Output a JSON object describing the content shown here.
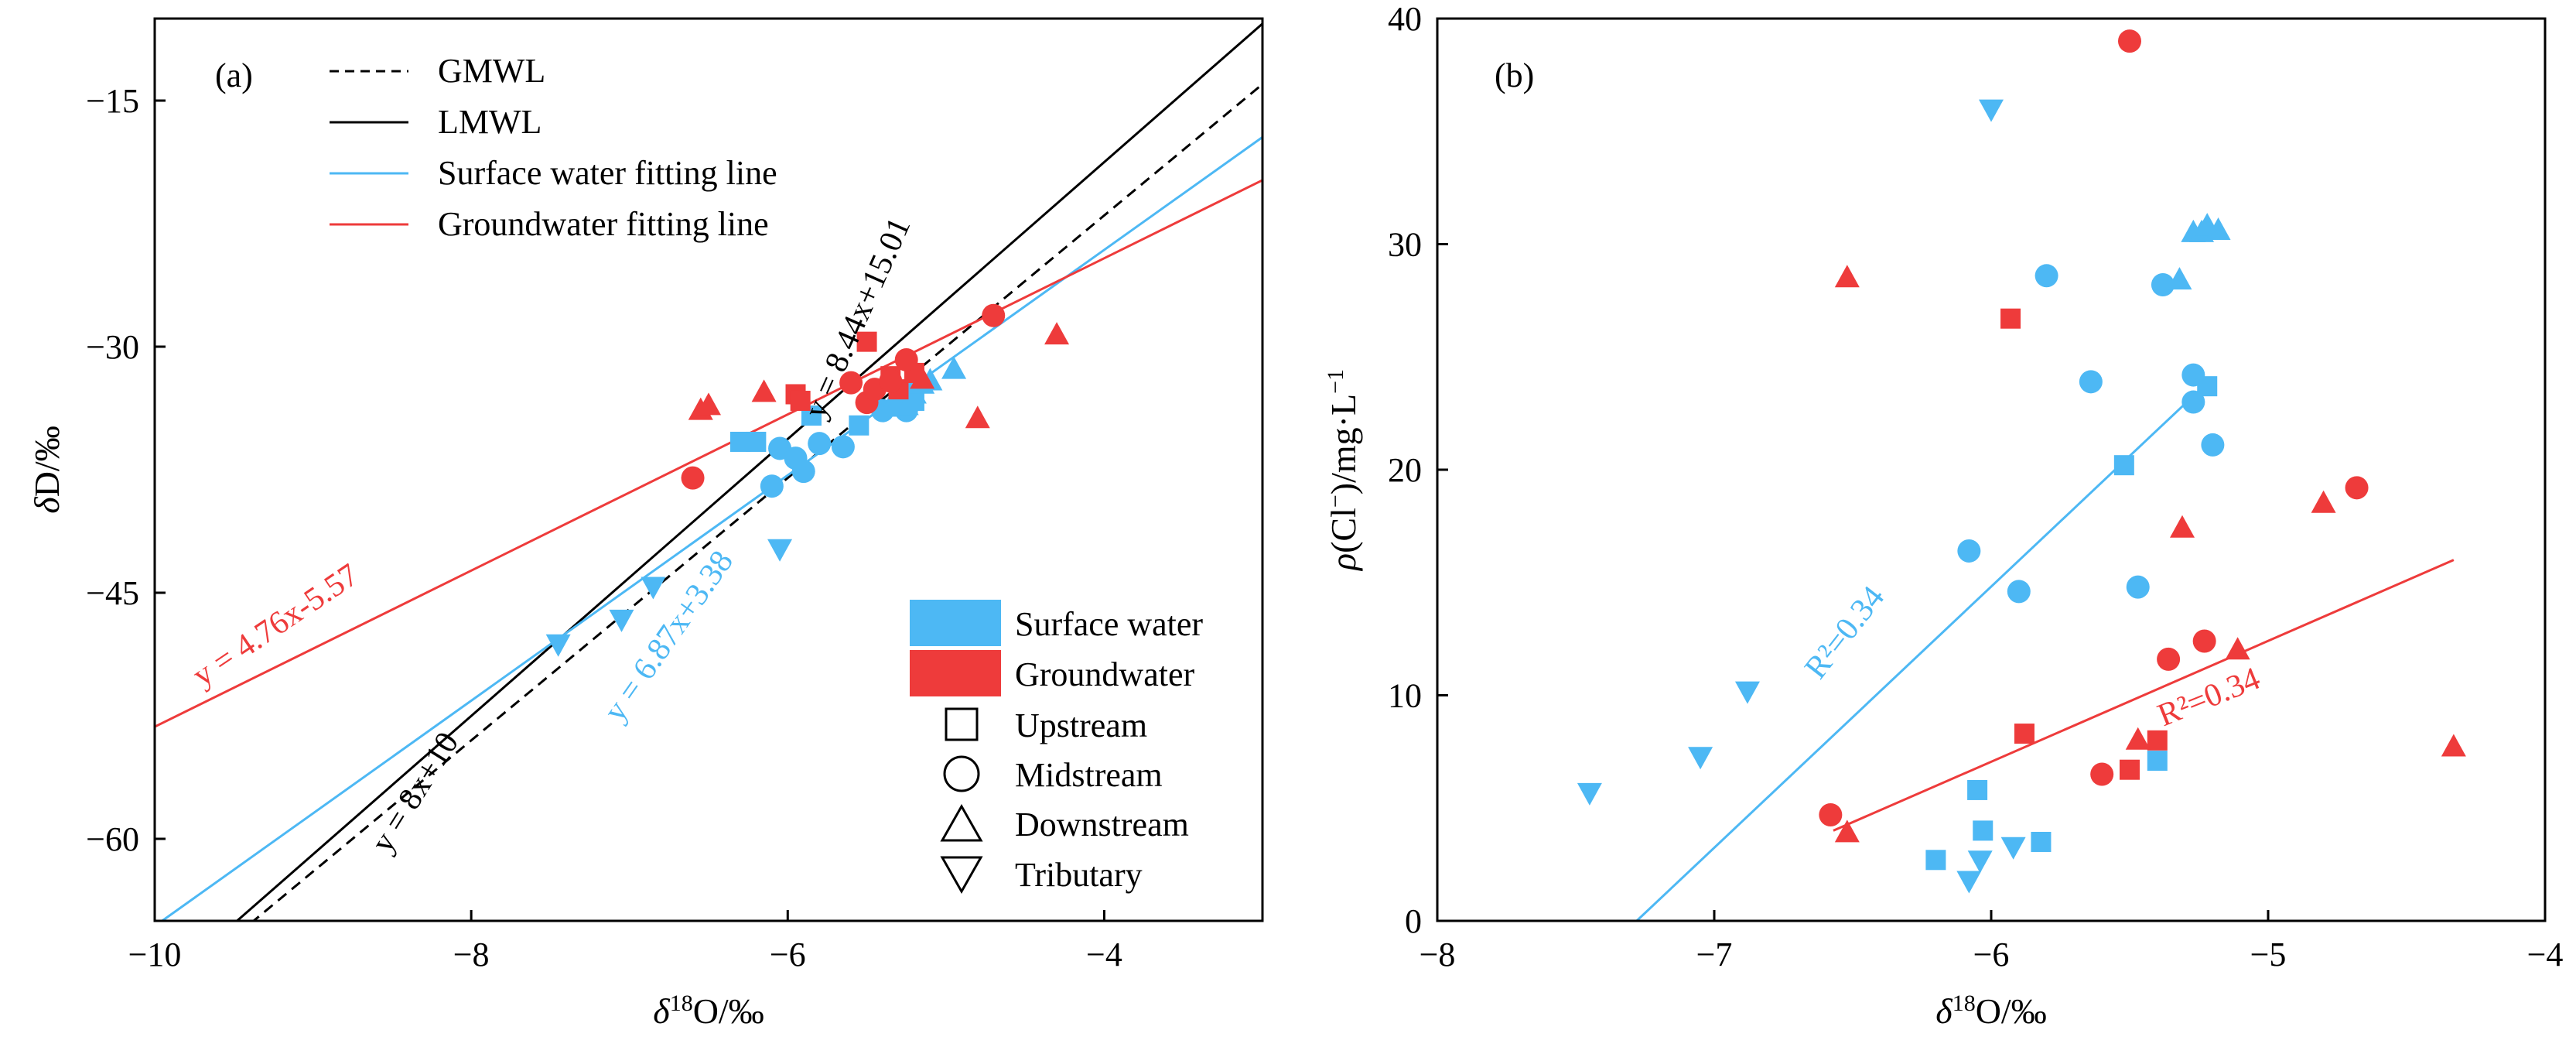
{
  "colors": {
    "surface": "#4db8f4",
    "ground": "#ee3b3b",
    "black": "#000000"
  },
  "chart_data": [
    {
      "type": "scatter",
      "panel_label": "(a)",
      "xlabel": "δ18O/‰",
      "ylabel": "δD/‰",
      "xlim": [
        -10,
        -3
      ],
      "ylim": [
        -65,
        -10
      ],
      "xticks": [
        -10,
        -8,
        -6,
        -4
      ],
      "xtick_labels": [
        "−10",
        "−8",
        "−6",
        "−4"
      ],
      "yticks": [
        -60,
        -45,
        -30,
        -15
      ],
      "ytick_labels": [
        "−60",
        "−45",
        "−30",
        "−15"
      ],
      "legend_lines": [
        {
          "label": "GMWL",
          "color": "#000000",
          "dash": true
        },
        {
          "label": "LMWL",
          "color": "#000000",
          "dash": false
        },
        {
          "label": "Surface water fitting line",
          "color": "#4db8f4",
          "dash": false
        },
        {
          "label": "Groundwater fitting line",
          "color": "#ee3b3b",
          "dash": false
        }
      ],
      "legend_groups": [
        {
          "label": "Surface water",
          "color": "#4db8f4"
        },
        {
          "label": "Groundwater",
          "color": "#ee3b3b"
        }
      ],
      "legend_shapes": [
        {
          "label": "Upstream",
          "shape": "square"
        },
        {
          "label": "Midstream",
          "shape": "circle"
        },
        {
          "label": "Downstream",
          "shape": "triangle"
        },
        {
          "label": "Tributary",
          "shape": "triangle-down"
        }
      ],
      "lines": [
        {
          "name": "GMWL",
          "slope": 8,
          "intercept": 10,
          "color": "#000000",
          "dash": true,
          "x_range": [
            -10,
            -3
          ]
        },
        {
          "name": "LMWL",
          "slope": 8.44,
          "intercept": 15.01,
          "color": "#000000",
          "dash": false,
          "x_range": [
            -10,
            -3
          ]
        },
        {
          "name": "Surface water fitting line",
          "slope": 6.87,
          "intercept": 3.38,
          "color": "#4db8f4",
          "dash": false,
          "x_range": [
            -10,
            -3
          ]
        },
        {
          "name": "Groundwater fitting line",
          "slope": 4.76,
          "intercept": -5.57,
          "color": "#ee3b3b",
          "dash": false,
          "x_range": [
            -10,
            -3
          ]
        }
      ],
      "annotations": [
        {
          "text": "y = 8.44x+15.01",
          "x": -5.5,
          "y": -28.5,
          "angle": -66,
          "color": "#000000"
        },
        {
          "text": "y = 8x+10",
          "x": -8.3,
          "y": -57.5,
          "angle": -58,
          "color": "#000000"
        },
        {
          "text": "y = 6.87x+3.38",
          "x": -6.7,
          "y": -48,
          "angle": -55,
          "color": "#4db8f4"
        },
        {
          "text": "y = 4.76x-5.57",
          "x": -9.2,
          "y": -47.5,
          "angle": -34,
          "color": "#ee3b3b"
        }
      ],
      "series": [
        {
          "name": "Surface water – Upstream",
          "group": "surface",
          "shape": "square",
          "points": [
            [
              -6.3,
              -35.8
            ],
            [
              -6.2,
              -35.8
            ],
            [
              -5.85,
              -34.2
            ],
            [
              -5.55,
              -34.8
            ],
            [
              -5.25,
              -32.8
            ],
            [
              -5.2,
              -33.3
            ]
          ]
        },
        {
          "name": "Surface water – Midstream",
          "group": "surface",
          "shape": "circle",
          "points": [
            [
              -6.1,
              -38.5
            ],
            [
              -6.05,
              -36.2
            ],
            [
              -5.95,
              -36.8
            ],
            [
              -5.9,
              -37.6
            ],
            [
              -5.8,
              -35.9
            ],
            [
              -5.65,
              -36.1
            ],
            [
              -5.4,
              -33.9
            ],
            [
              -5.3,
              -33.4
            ],
            [
              -5.25,
              -33.9
            ],
            [
              -5.2,
              -32.5
            ]
          ]
        },
        {
          "name": "Surface water – Downstream",
          "group": "surface",
          "shape": "triangle",
          "points": [
            [
              -5.35,
              -33.7
            ],
            [
              -5.3,
              -33.3
            ],
            [
              -5.25,
              -33.6
            ],
            [
              -5.2,
              -32.9
            ],
            [
              -5.15,
              -32.3
            ],
            [
              -5.1,
              -32.1
            ],
            [
              -4.95,
              -31.4
            ]
          ]
        },
        {
          "name": "Surface water – Tributary",
          "group": "surface",
          "shape": "triangle-down",
          "points": [
            [
              -7.45,
              -48.1
            ],
            [
              -7.05,
              -46.6
            ],
            [
              -6.85,
              -44.6
            ],
            [
              -6.05,
              -42.3
            ]
          ]
        },
        {
          "name": "Groundwater – Upstream",
          "group": "ground",
          "shape": "square",
          "points": [
            [
              -5.95,
              -32.9
            ],
            [
              -5.92,
              -33.3
            ],
            [
              -5.5,
              -29.7
            ],
            [
              -5.35,
              -31.8
            ],
            [
              -5.3,
              -32.6
            ],
            [
              -5.2,
              -31.6
            ]
          ]
        },
        {
          "name": "Groundwater – Midstream",
          "group": "ground",
          "shape": "circle",
          "points": [
            [
              -6.6,
              -38.0
            ],
            [
              -5.6,
              -32.2
            ],
            [
              -5.5,
              -33.4
            ],
            [
              -5.45,
              -32.6
            ],
            [
              -5.35,
              -32.1
            ],
            [
              -5.25,
              -30.8
            ],
            [
              -4.7,
              -28.1
            ]
          ]
        },
        {
          "name": "Groundwater – Downstream",
          "group": "ground",
          "shape": "triangle",
          "points": [
            [
              -6.55,
              -33.9
            ],
            [
              -6.5,
              -33.6
            ],
            [
              -6.15,
              -32.8
            ],
            [
              -5.15,
              -32.0
            ],
            [
              -4.8,
              -34.4
            ],
            [
              -4.3,
              -29.3
            ]
          ]
        }
      ]
    },
    {
      "type": "scatter",
      "panel_label": "(b)",
      "xlabel": "δ18O/‰",
      "ylabel": "ρ(Cl−)/mg·L−1",
      "xlim": [
        -8,
        -4
      ],
      "ylim": [
        0,
        40
      ],
      "xticks": [
        -8,
        -7,
        -6,
        -5,
        -4
      ],
      "xtick_labels": [
        "−8",
        "−7",
        "−6",
        "−5",
        "−4"
      ],
      "yticks": [
        0,
        10,
        20,
        30,
        40
      ],
      "ytick_labels": [
        "0",
        "10",
        "20",
        "30",
        "40"
      ],
      "lines": [
        {
          "name": "Surface water fit",
          "color": "#4db8f4",
          "p1": [
            -7.28,
            0
          ],
          "p2": [
            -5.25,
            23.5
          ]
        },
        {
          "name": "Groundwater fit",
          "color": "#ee3b3b",
          "p1": [
            -6.57,
            4.0
          ],
          "p2": [
            -4.33,
            16.0
          ]
        }
      ],
      "annotations": [
        {
          "text": "R²=0.34",
          "x": -6.5,
          "y": 12.5,
          "angle": -52,
          "color": "#4db8f4"
        },
        {
          "text": "R²=0.34",
          "x": -5.2,
          "y": 9.5,
          "angle": -22,
          "color": "#ee3b3b"
        }
      ],
      "series": [
        {
          "name": "Surface water – Upstream",
          "group": "surface",
          "shape": "square",
          "points": [
            [
              -6.2,
              2.7
            ],
            [
              -6.05,
              5.8
            ],
            [
              -6.03,
              4.0
            ],
            [
              -5.82,
              3.5
            ],
            [
              -5.52,
              20.2
            ],
            [
              -5.4,
              7.1
            ],
            [
              -5.22,
              23.7
            ]
          ]
        },
        {
          "name": "Surface water – Midstream",
          "group": "surface",
          "shape": "circle",
          "points": [
            [
              -6.08,
              16.4
            ],
            [
              -5.9,
              14.6
            ],
            [
              -5.8,
              28.6
            ],
            [
              -5.64,
              23.9
            ],
            [
              -5.47,
              14.8
            ],
            [
              -5.38,
              28.2
            ],
            [
              -5.27,
              24.2
            ],
            [
              -5.27,
              23.0
            ],
            [
              -5.2,
              21.1
            ]
          ]
        },
        {
          "name": "Surface water – Downstream",
          "group": "surface",
          "shape": "triangle",
          "points": [
            [
              -5.32,
              28.4
            ],
            [
              -5.27,
              30.5
            ],
            [
              -5.24,
              30.5
            ],
            [
              -5.22,
              30.8
            ],
            [
              -5.18,
              30.6
            ]
          ]
        },
        {
          "name": "Surface water – Tributary",
          "group": "surface",
          "shape": "triangle-down",
          "points": [
            [
              -7.45,
              5.7
            ],
            [
              -7.05,
              7.3
            ],
            [
              -6.88,
              10.2
            ],
            [
              -6.08,
              1.8
            ],
            [
              -6.04,
              2.7
            ],
            [
              -6.0,
              36.0
            ],
            [
              -5.92,
              3.3
            ]
          ]
        },
        {
          "name": "Groundwater – Upstream",
          "group": "ground",
          "shape": "square",
          "points": [
            [
              -5.93,
              26.7
            ],
            [
              -5.88,
              8.3
            ],
            [
              -5.5,
              6.7
            ],
            [
              -5.4,
              8.0
            ]
          ]
        },
        {
          "name": "Groundwater – Midstream",
          "group": "ground",
          "shape": "circle",
          "points": [
            [
              -6.58,
              4.7
            ],
            [
              -5.6,
              6.5
            ],
            [
              -5.5,
              39.0
            ],
            [
              -5.36,
              11.6
            ],
            [
              -5.23,
              12.4
            ],
            [
              -4.68,
              19.2
            ]
          ]
        },
        {
          "name": "Groundwater – Downstream",
          "group": "ground",
          "shape": "triangle",
          "points": [
            [
              -6.52,
              28.5
            ],
            [
              -6.52,
              3.9
            ],
            [
              -5.47,
              8.0
            ],
            [
              -5.31,
              17.4
            ],
            [
              -5.11,
              12.0
            ],
            [
              -4.8,
              18.5
            ],
            [
              -4.33,
              7.7
            ]
          ]
        }
      ]
    }
  ]
}
